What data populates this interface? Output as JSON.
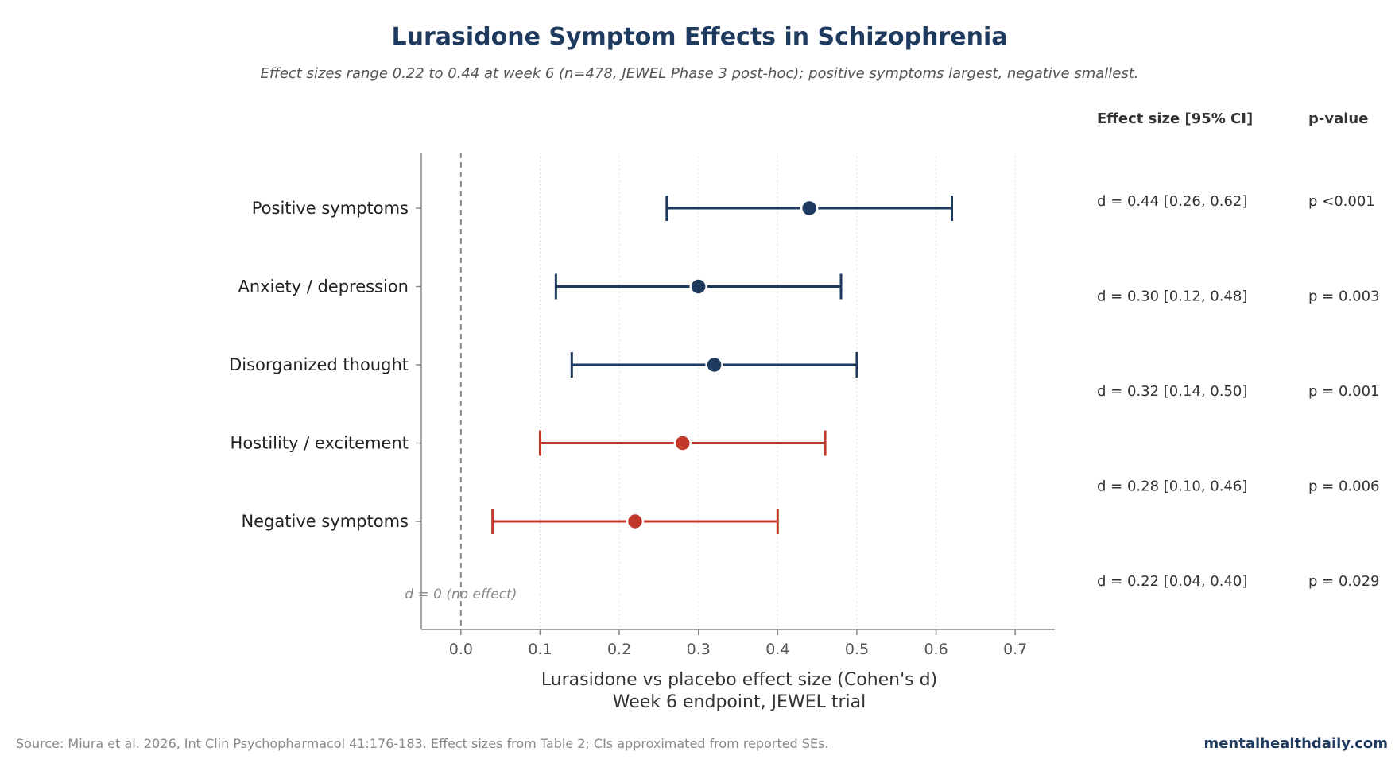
{
  "colors": {
    "primary": "#1f3a5f",
    "secondary": "#c0392b",
    "grid": "#dddddd",
    "axis": "#888888"
  },
  "chart_data": {
    "type": "forest",
    "title": "Lurasidone Symptom Effects in Schizophrenia",
    "subtitle": "Effect sizes range 0.22 to 0.44 at week 6 (n=478, JEWEL Phase 3 post-hoc); positive symptoms largest, negative smallest.",
    "xlabel_line1": "Lurasidone vs placebo effect size (Cohen's d)",
    "xlabel_line2": "Week 6 endpoint, JEWEL trial",
    "xlim": [
      -0.05,
      0.75
    ],
    "xticks": [
      0.0,
      0.1,
      0.2,
      0.3,
      0.4,
      0.5,
      0.6,
      0.7
    ],
    "xtick_labels": [
      "0.0",
      "0.1",
      "0.2",
      "0.3",
      "0.4",
      "0.5",
      "0.6",
      "0.7"
    ],
    "grid": "x-dotted",
    "reference_line": {
      "x": 0,
      "label": "d = 0 (no effect)"
    },
    "rows": [
      {
        "label": "Positive symptoms",
        "d": 0.44,
        "lo": 0.26,
        "hi": 0.62,
        "group": "primary"
      },
      {
        "label": "Anxiety / depression",
        "d": 0.3,
        "lo": 0.12,
        "hi": 0.48,
        "group": "primary"
      },
      {
        "label": "Disorganized thought",
        "d": 0.32,
        "lo": 0.14,
        "hi": 0.5,
        "group": "primary"
      },
      {
        "label": "Hostility / excitement",
        "d": 0.28,
        "lo": 0.1,
        "hi": 0.46,
        "group": "secondary"
      },
      {
        "label": "Negative symptoms",
        "d": 0.22,
        "lo": 0.04,
        "hi": 0.4,
        "group": "secondary"
      }
    ],
    "table": {
      "headers": [
        "Effect size [95% CI]",
        "p-value"
      ],
      "rows": [
        [
          "d = 0.44 [0.26, 0.62]",
          "p <0.001"
        ],
        [
          "d = 0.30 [0.12, 0.48]",
          "p = 0.003"
        ],
        [
          "d = 0.32 [0.14, 0.50]",
          "p = 0.001"
        ],
        [
          "d = 0.28 [0.10, 0.46]",
          "p = 0.006"
        ],
        [
          "d = 0.22 [0.04, 0.40]",
          "p = 0.029"
        ]
      ]
    }
  },
  "footer": {
    "source": "Source: Miura et al. 2026, Int Clin Psychopharmacol 41:176-183. Effect sizes from Table 2; CIs approximated from reported SEs.",
    "brand": "mentalhealthdaily.com"
  }
}
